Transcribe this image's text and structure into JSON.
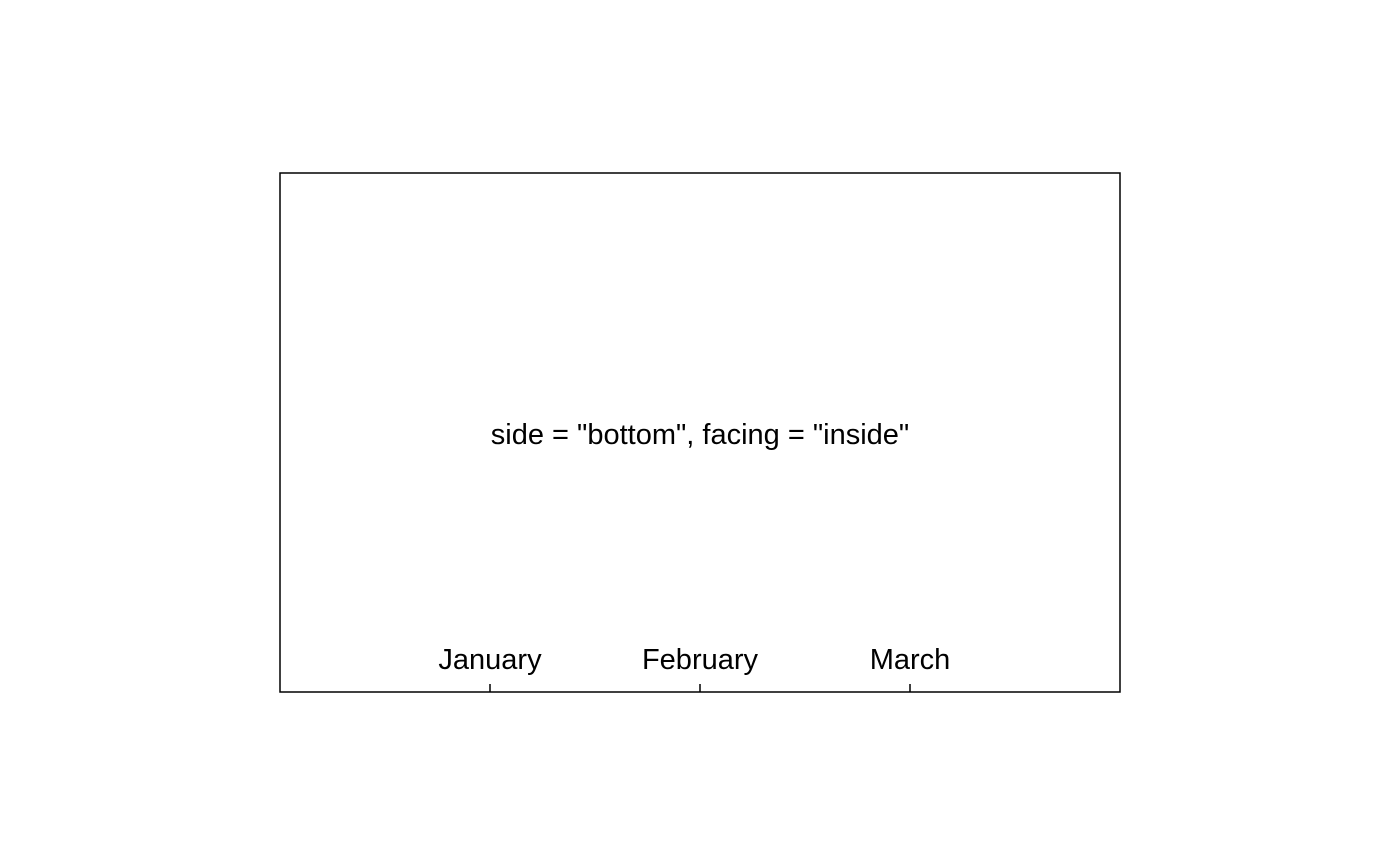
{
  "chart_data": {
    "type": "bar",
    "title": "",
    "xlabel": "",
    "ylabel": "",
    "categories": [
      "January",
      "February",
      "March"
    ],
    "x": [
      1,
      2,
      3
    ],
    "xlim": [
      0,
      4
    ],
    "axis_side": "bottom",
    "tick_facing": "inside",
    "grid": false,
    "annotations": [
      "side = \"bottom\", facing = \"inside\""
    ]
  }
}
